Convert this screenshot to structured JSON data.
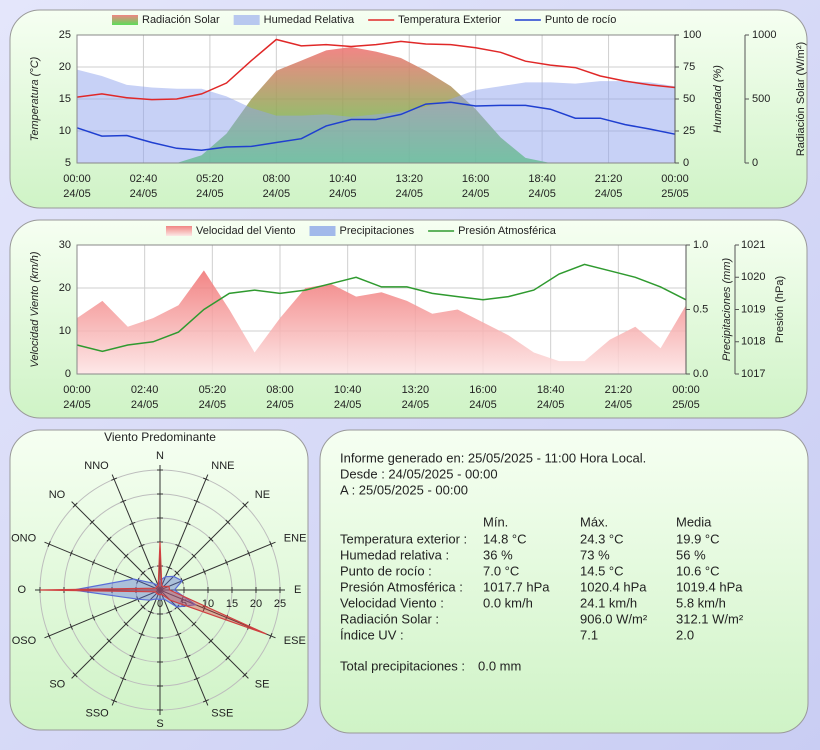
{
  "chart_data": [
    {
      "type": "line",
      "x": [
        "24/05 00:00",
        "24/05 01:00",
        "24/05 02:00",
        "24/05 03:00",
        "24/05 04:00",
        "24/05 05:00",
        "24/05 06:00",
        "24/05 07:00",
        "24/05 08:00",
        "24/05 09:00",
        "24/05 10:00",
        "24/05 11:00",
        "24/05 12:00",
        "24/05 13:00",
        "24/05 14:00",
        "24/05 15:00",
        "24/05 16:00",
        "24/05 17:00",
        "24/05 18:00",
        "24/05 19:00",
        "24/05 20:00",
        "24/05 21:00",
        "24/05 22:00",
        "24/05 23:00",
        "25/05 00:00"
      ],
      "xlim": [
        "24/05 00:00",
        "25/05 00:00"
      ],
      "xticks": [
        {
          "value": "24/05 00:00",
          "label": [
            "00:00",
            "24/05"
          ]
        },
        {
          "value": "24/05 02:40",
          "label": [
            "02:40",
            "24/05"
          ]
        },
        {
          "value": "24/05 05:20",
          "label": [
            "05:20",
            "24/05"
          ]
        },
        {
          "value": "24/05 08:00",
          "label": [
            "08:00",
            "24/05"
          ]
        },
        {
          "value": "24/05 10:40",
          "label": [
            "10:40",
            "24/05"
          ]
        },
        {
          "value": "24/05 13:20",
          "label": [
            "13:20",
            "24/05"
          ]
        },
        {
          "value": "24/05 16:00",
          "label": [
            "16:00",
            "24/05"
          ]
        },
        {
          "value": "24/05 18:40",
          "label": [
            "18:40",
            "24/05"
          ]
        },
        {
          "value": "24/05 21:20",
          "label": [
            "21:20",
            "24/05"
          ]
        },
        {
          "value": "25/05 00:00",
          "label": [
            "00:00",
            "25/05"
          ]
        }
      ],
      "ylabel": "Temperatura (°C)",
      "ylim": [
        5,
        25
      ],
      "yticks": [
        5,
        10,
        15,
        20,
        25
      ],
      "y2label": "Humedad (%)",
      "y2lim": [
        0,
        100
      ],
      "y2ticks": [
        0,
        25,
        50,
        75,
        100
      ],
      "y3label": "Radiación Solar (W/m²)",
      "y3lim": [
        0,
        1000
      ],
      "y3ticks": [
        0,
        500,
        1000
      ],
      "grid": true,
      "series": [
        {
          "name": "Radiación Solar",
          "type": "area",
          "axis": "y3",
          "color": [
            "#f07070",
            "#40d840"
          ],
          "values": [
            0,
            0,
            0,
            0,
            0,
            60,
            230,
            500,
            720,
            800,
            880,
            906,
            870,
            820,
            720,
            600,
            420,
            200,
            40,
            0,
            0,
            0,
            0,
            0,
            0
          ]
        },
        {
          "name": "Humedad Relativa",
          "type": "area",
          "axis": "y2",
          "color": "#8fa4ee",
          "values": [
            73,
            68,
            61,
            59,
            58,
            58,
            52,
            43,
            37,
            37,
            38,
            36,
            38,
            40,
            44,
            50,
            57,
            60,
            63,
            63,
            62,
            64,
            64,
            63,
            60
          ]
        },
        {
          "name": "Temperatura Exterior",
          "type": "line",
          "axis": "y",
          "color": "#e02828",
          "values": [
            15.3,
            15.8,
            15.2,
            14.9,
            15.0,
            15.8,
            17.5,
            21.0,
            24.3,
            23.3,
            23.5,
            23.2,
            23.5,
            24.0,
            23.6,
            23.5,
            23.0,
            22.3,
            20.9,
            20.3,
            19.9,
            18.6,
            17.8,
            17.2,
            16.8
          ]
        },
        {
          "name": "Punto de rocío",
          "type": "line",
          "axis": "y",
          "color": "#1f3fd0",
          "values": [
            10.5,
            9.2,
            9.3,
            8.2,
            7.3,
            7.0,
            7.5,
            7.6,
            8.2,
            8.8,
            10.8,
            11.8,
            11.8,
            12.6,
            14.2,
            14.5,
            13.9,
            14.0,
            14.0,
            13.4,
            12.0,
            12.0,
            11.0,
            10.3,
            9.5
          ]
        }
      ]
    },
    {
      "type": "line",
      "x": [
        "24/05 00:00",
        "24/05 01:00",
        "24/05 02:00",
        "24/05 03:00",
        "24/05 04:00",
        "24/05 05:00",
        "24/05 06:00",
        "24/05 07:00",
        "24/05 08:00",
        "24/05 09:00",
        "24/05 10:00",
        "24/05 11:00",
        "24/05 12:00",
        "24/05 13:00",
        "24/05 14:00",
        "24/05 15:00",
        "24/05 16:00",
        "24/05 17:00",
        "24/05 18:00",
        "24/05 19:00",
        "24/05 20:00",
        "24/05 21:00",
        "24/05 22:00",
        "24/05 23:00",
        "25/05 00:00"
      ],
      "xlim": [
        "24/05 00:00",
        "25/05 00:00"
      ],
      "xticks": [
        {
          "value": "24/05 00:00",
          "label": [
            "00:00",
            "24/05"
          ]
        },
        {
          "value": "24/05 02:40",
          "label": [
            "02:40",
            "24/05"
          ]
        },
        {
          "value": "24/05 05:20",
          "label": [
            "05:20",
            "24/05"
          ]
        },
        {
          "value": "24/05 08:00",
          "label": [
            "08:00",
            "24/05"
          ]
        },
        {
          "value": "24/05 10:40",
          "label": [
            "10:40",
            "24/05"
          ]
        },
        {
          "value": "24/05 13:20",
          "label": [
            "13:20",
            "24/05"
          ]
        },
        {
          "value": "24/05 16:00",
          "label": [
            "16:00",
            "24/05"
          ]
        },
        {
          "value": "24/05 18:40",
          "label": [
            "18:40",
            "24/05"
          ]
        },
        {
          "value": "24/05 21:20",
          "label": [
            "21:20",
            "24/05"
          ]
        },
        {
          "value": "25/05 00:00",
          "label": [
            "00:00",
            "25/05"
          ]
        }
      ],
      "ylabel": "Velocidad Viento (km/h)",
      "ylim": [
        0,
        30
      ],
      "yticks": [
        0,
        10,
        20,
        30
      ],
      "y2label": "Precipitaciones (mm)",
      "y2lim": [
        0,
        1
      ],
      "y2ticks": [
        {
          "value": 0,
          "label": "0.0"
        },
        0.5,
        {
          "value": 1,
          "label": "1.0"
        }
      ],
      "y3label": "Presión (hPa)",
      "y3lim": [
        1017,
        1021
      ],
      "y3ticks": [
        1017,
        1018,
        1019,
        1020,
        1021
      ],
      "grid": true,
      "series": [
        {
          "name": "Velocidad del Viento",
          "type": "area",
          "axis": "y",
          "color": [
            "#f07070",
            "#fde4e4"
          ],
          "values": [
            13,
            17,
            11,
            13,
            16,
            24.1,
            15,
            5,
            13,
            20,
            21,
            18,
            19,
            17,
            14,
            15,
            12,
            9,
            5,
            3,
            3,
            8,
            11,
            6,
            16
          ]
        },
        {
          "name": "Precipitaciones",
          "type": "area",
          "axis": "y2",
          "color": "#6a8ae6",
          "values": [
            0,
            0,
            0,
            0,
            0,
            0,
            0,
            0,
            0,
            0,
            0,
            0,
            0,
            0,
            0,
            0,
            0,
            0,
            0,
            0,
            0,
            0,
            0,
            0,
            0
          ]
        },
        {
          "name": "Presión Atmosférica",
          "type": "line",
          "axis": "y3",
          "color": "#2f9a2f",
          "values": [
            1017.9,
            1017.7,
            1017.9,
            1018.0,
            1018.3,
            1019.0,
            1019.5,
            1019.6,
            1019.5,
            1019.6,
            1019.8,
            1020.0,
            1019.7,
            1019.7,
            1019.5,
            1019.4,
            1019.3,
            1019.4,
            1019.6,
            1020.1,
            1020.4,
            1020.2,
            1020.0,
            1019.7,
            1019.3
          ]
        }
      ]
    },
    {
      "type": "polar",
      "title": "Viento Predominante",
      "categories": [
        "N",
        "NNE",
        "NE",
        "ENE",
        "E",
        "ESE",
        "SE",
        "SSE",
        "S",
        "SSO",
        "SO",
        "OSO",
        "O",
        "ONO",
        "NO",
        "NNO"
      ],
      "rlim": [
        0,
        25
      ],
      "rticks": [
        0,
        5,
        10,
        15,
        20,
        25
      ],
      "series": [
        {
          "color": "#5a6ed8",
          "values": [
            2,
            3,
            4,
            5,
            3,
            8,
            5,
            2,
            2,
            2,
            3,
            5,
            18,
            6,
            2,
            1
          ]
        },
        {
          "color": "#d04040",
          "values": [
            10,
            1,
            1,
            2,
            2,
            24,
            3,
            1,
            1,
            1,
            1,
            1,
            25,
            1,
            1,
            1
          ]
        }
      ]
    }
  ],
  "report": {
    "generated": "Informe generado en: 25/05/2025 - 11:00 Hora Local.",
    "from": "Desde : 24/05/2025 - 00:00",
    "to": "A : 25/05/2025 - 00:00",
    "columns": [
      "Mín.",
      "Máx.",
      "Media"
    ],
    "rows": [
      {
        "label": "Temperatura exterior :",
        "values": [
          "14.8 °C",
          "24.3 °C",
          "19.9 °C"
        ]
      },
      {
        "label": "Humedad relativa :",
        "values": [
          "36 %",
          "73 %",
          "56 %"
        ]
      },
      {
        "label": "Punto de rocío :",
        "values": [
          "7.0 °C",
          "14.5 °C",
          "10.6 °C"
        ]
      },
      {
        "label": "Presión Atmosférica :",
        "values": [
          "1017.7 hPa",
          "1020.4 hPa",
          "1019.4 hPa"
        ]
      },
      {
        "label": "Velocidad Viento :",
        "values": [
          "0.0 km/h",
          "24.1 km/h",
          "5.8 km/h"
        ]
      },
      {
        "label": "Radiación Solar :",
        "values": [
          null,
          "906.0 W/m²",
          "312.1 W/m²"
        ]
      },
      {
        "label": "Índice UV :",
        "values": [
          null,
          "7.1",
          "2.0"
        ]
      }
    ],
    "total": {
      "label": "Total precipitaciones :",
      "value": "0.0 mm"
    }
  }
}
